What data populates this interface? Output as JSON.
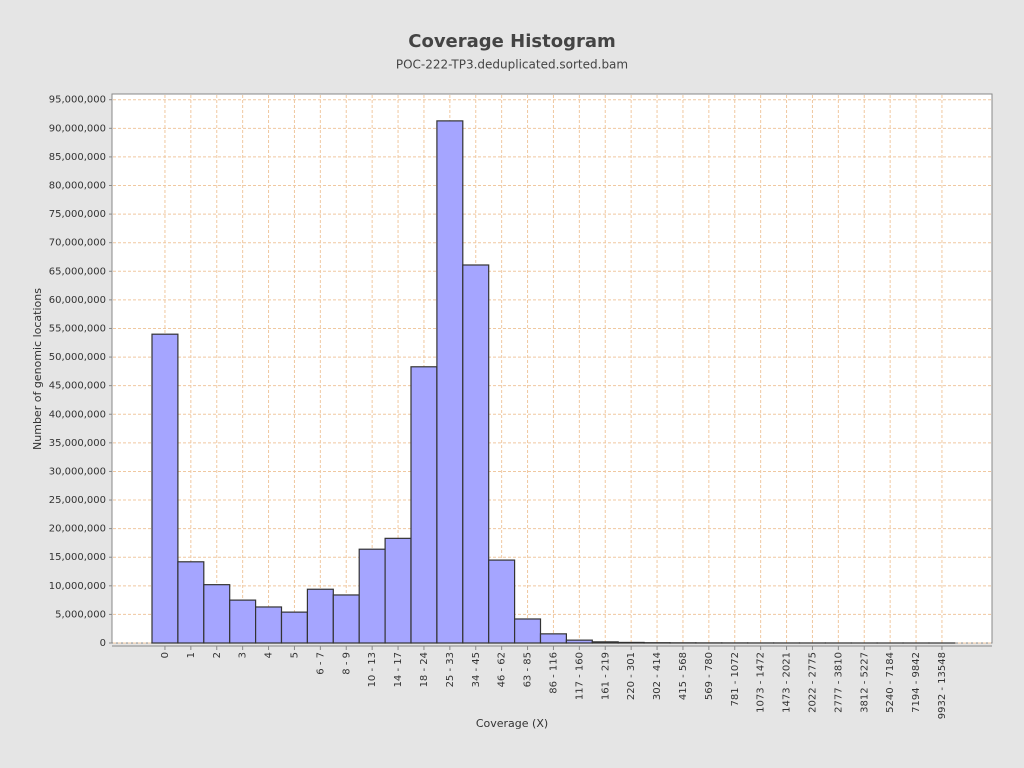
{
  "chart_data": {
    "type": "bar",
    "title": "Coverage Histogram",
    "subtitle": "POC-222-TP3.deduplicated.sorted.bam",
    "x_label": "Coverage (X)",
    "y_label": "Number of genomic locations",
    "categories": [
      "0",
      "1",
      "2",
      "3",
      "4",
      "5",
      "6 - 7",
      "8 - 9",
      "10 - 13",
      "14 - 17",
      "18 - 24",
      "25 - 33",
      "34 - 45",
      "46 - 62",
      "63 - 85",
      "86 - 116",
      "117 - 160",
      "161 - 219",
      "220 - 301",
      "302 - 414",
      "415 - 568",
      "569 - 780",
      "781 - 1072",
      "1073 - 1472",
      "1473 - 2021",
      "2022 - 2775",
      "2777 - 3810",
      "3812 - 5227",
      "5240 - 7184",
      "7194 - 9842",
      "9932 - 13548"
    ],
    "values": [
      54000000,
      14200000,
      10200000,
      7500000,
      6300000,
      5400000,
      9400000,
      8400000,
      16400000,
      18300000,
      48300000,
      91300000,
      66100000,
      14500000,
      4200000,
      1600000,
      500000,
      200000,
      100000,
      50000,
      30000,
      20000,
      15000,
      10000,
      8000,
      6000,
      5000,
      4000,
      3000,
      2000,
      1000
    ],
    "color": "#a5a5ff",
    "grid": true,
    "ylim": [
      0,
      96000000
    ],
    "yticks": [
      {
        "value": 0,
        "label": "0"
      },
      {
        "value": 5000000,
        "label": "5,000,000"
      },
      {
        "value": 10000000,
        "label": "10,000,000"
      },
      {
        "value": 15000000,
        "label": "15,000,000"
      },
      {
        "value": 20000000,
        "label": "20,000,000"
      },
      {
        "value": 25000000,
        "label": "25,000,000"
      },
      {
        "value": 30000000,
        "label": "30,000,000"
      },
      {
        "value": 35000000,
        "label": "35,000,000"
      },
      {
        "value": 40000000,
        "label": "40,000,000"
      },
      {
        "value": 45000000,
        "label": "45,000,000"
      },
      {
        "value": 50000000,
        "label": "50,000,000"
      },
      {
        "value": 55000000,
        "label": "55,000,000"
      },
      {
        "value": 60000000,
        "label": "60,000,000"
      },
      {
        "value": 65000000,
        "label": "65,000,000"
      },
      {
        "value": 70000000,
        "label": "70,000,000"
      },
      {
        "value": 75000000,
        "label": "75,000,000"
      },
      {
        "value": 80000000,
        "label": "80,000,000"
      },
      {
        "value": 85000000,
        "label": "85,000,000"
      },
      {
        "value": 90000000,
        "label": "90,000,000"
      },
      {
        "value": 95000000,
        "label": "95,000,000"
      }
    ]
  }
}
